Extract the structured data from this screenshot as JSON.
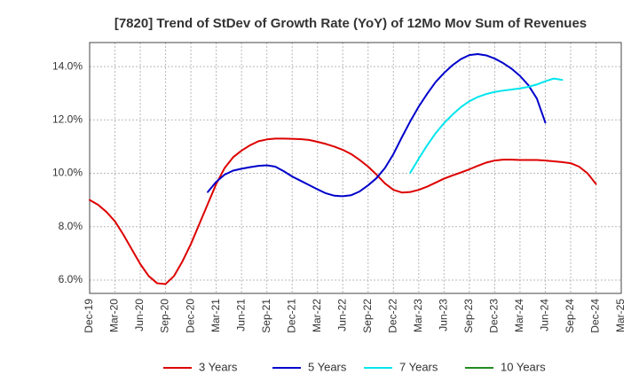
{
  "chart_data": {
    "type": "line",
    "title": "[7820]  Trend of StDev of Growth Rate (YoY) of 12Mo Mov Sum of Revenues",
    "xlabel": "",
    "ylabel": "",
    "x_ticks": [
      "Dec-19",
      "Mar-20",
      "Jun-20",
      "Sep-20",
      "Dec-20",
      "Mar-21",
      "Jun-21",
      "Sep-21",
      "Dec-21",
      "Mar-22",
      "Jun-22",
      "Sep-22",
      "Dec-22",
      "Mar-23",
      "Jun-23",
      "Sep-23",
      "Dec-23",
      "Mar-24",
      "Jun-24",
      "Sep-24",
      "Dec-24",
      "Mar-25"
    ],
    "xlim": [
      0,
      63
    ],
    "ylim": [
      5.5,
      14.9
    ],
    "y_ticks": [
      6.0,
      8.0,
      10.0,
      12.0,
      14.0
    ],
    "y_tick_labels": [
      "6.0%",
      "8.0%",
      "10.0%",
      "12.0%",
      "14.0%"
    ],
    "grid": true,
    "legend_position": "bottom",
    "series": [
      {
        "name": "3 Years",
        "color": "#dd0000",
        "start_index": 0,
        "values": [
          9.0,
          8.82,
          8.55,
          8.2,
          7.7,
          7.15,
          6.6,
          6.15,
          5.88,
          5.85,
          6.15,
          6.7,
          7.35,
          8.1,
          8.85,
          9.6,
          10.2,
          10.6,
          10.85,
          11.05,
          11.2,
          11.27,
          11.3,
          11.3,
          11.29,
          11.28,
          11.25,
          11.18,
          11.1,
          11.0,
          10.88,
          10.72,
          10.5,
          10.25,
          9.95,
          9.62,
          9.38,
          9.28,
          9.3,
          9.38,
          9.5,
          9.65,
          9.8,
          9.92,
          10.03,
          10.15,
          10.28,
          10.4,
          10.48,
          10.51,
          10.51,
          10.5,
          10.5,
          10.5,
          10.48,
          10.45,
          10.42,
          10.38,
          10.25,
          10.0,
          9.6
        ]
      },
      {
        "name": "5 Years",
        "color": "#0000cc",
        "start_index": 14,
        "values": [
          9.3,
          9.68,
          9.95,
          10.1,
          10.17,
          10.23,
          10.28,
          10.3,
          10.25,
          10.08,
          9.88,
          9.72,
          9.56,
          9.4,
          9.25,
          9.16,
          9.14,
          9.18,
          9.32,
          9.55,
          9.82,
          10.2,
          10.72,
          11.35,
          11.95,
          12.5,
          12.98,
          13.42,
          13.76,
          14.05,
          14.28,
          14.43,
          14.47,
          14.42,
          14.3,
          14.13,
          13.92,
          13.65,
          13.3,
          12.8,
          11.9
        ]
      },
      {
        "name": "7 Years",
        "color": "#00e5ee",
        "start_index": 38,
        "values": [
          10.02,
          10.55,
          11.05,
          11.5,
          11.88,
          12.2,
          12.48,
          12.7,
          12.86,
          12.97,
          13.05,
          13.1,
          13.14,
          13.18,
          13.24,
          13.33,
          13.45,
          13.55,
          13.5
        ]
      },
      {
        "name": "10 Years",
        "color": "#228b22",
        "start_index": 0,
        "values": []
      }
    ]
  }
}
